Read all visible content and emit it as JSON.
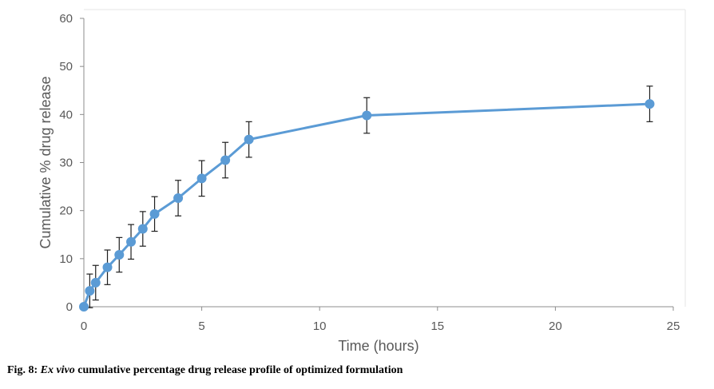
{
  "caption": {
    "label": "Fig. 8:",
    "italic": "Ex vivo",
    "rest": "cumulative percentage drug release profile of optimized formulation"
  },
  "chart_data": {
    "type": "scatter",
    "title": "",
    "xlabel": "Time (hours)",
    "ylabel": "Cumulative % drug release",
    "xlim": [
      0,
      25
    ],
    "ylim": [
      0,
      60
    ],
    "xticks": [
      0,
      5,
      10,
      15,
      20,
      25
    ],
    "yticks": [
      0,
      10,
      20,
      30,
      40,
      50,
      60
    ],
    "grid": "frame top/right only",
    "legend": "none",
    "series": [
      {
        "color": "#5b9bd5",
        "markers": true,
        "lines": true,
        "points": [
          {
            "x": 0,
            "y": 0,
            "err": 0
          },
          {
            "x": 0.25,
            "y": 3.3,
            "err": 3.5
          },
          {
            "x": 0.5,
            "y": 5.0,
            "err": 3.6
          },
          {
            "x": 1,
            "y": 8.2,
            "err": 3.6
          },
          {
            "x": 1.5,
            "y": 10.8,
            "err": 3.6
          },
          {
            "x": 2,
            "y": 13.5,
            "err": 3.6
          },
          {
            "x": 2.5,
            "y": 16.2,
            "err": 3.6
          },
          {
            "x": 3,
            "y": 19.3,
            "err": 3.6
          },
          {
            "x": 4,
            "y": 22.6,
            "err": 3.7
          },
          {
            "x": 5,
            "y": 26.7,
            "err": 3.7
          },
          {
            "x": 6,
            "y": 30.5,
            "err": 3.7
          },
          {
            "x": 7,
            "y": 34.8,
            "err": 3.7
          },
          {
            "x": 12,
            "y": 39.8,
            "err": 3.7
          },
          {
            "x": 24,
            "y": 42.2,
            "err": 3.7
          }
        ]
      }
    ]
  }
}
